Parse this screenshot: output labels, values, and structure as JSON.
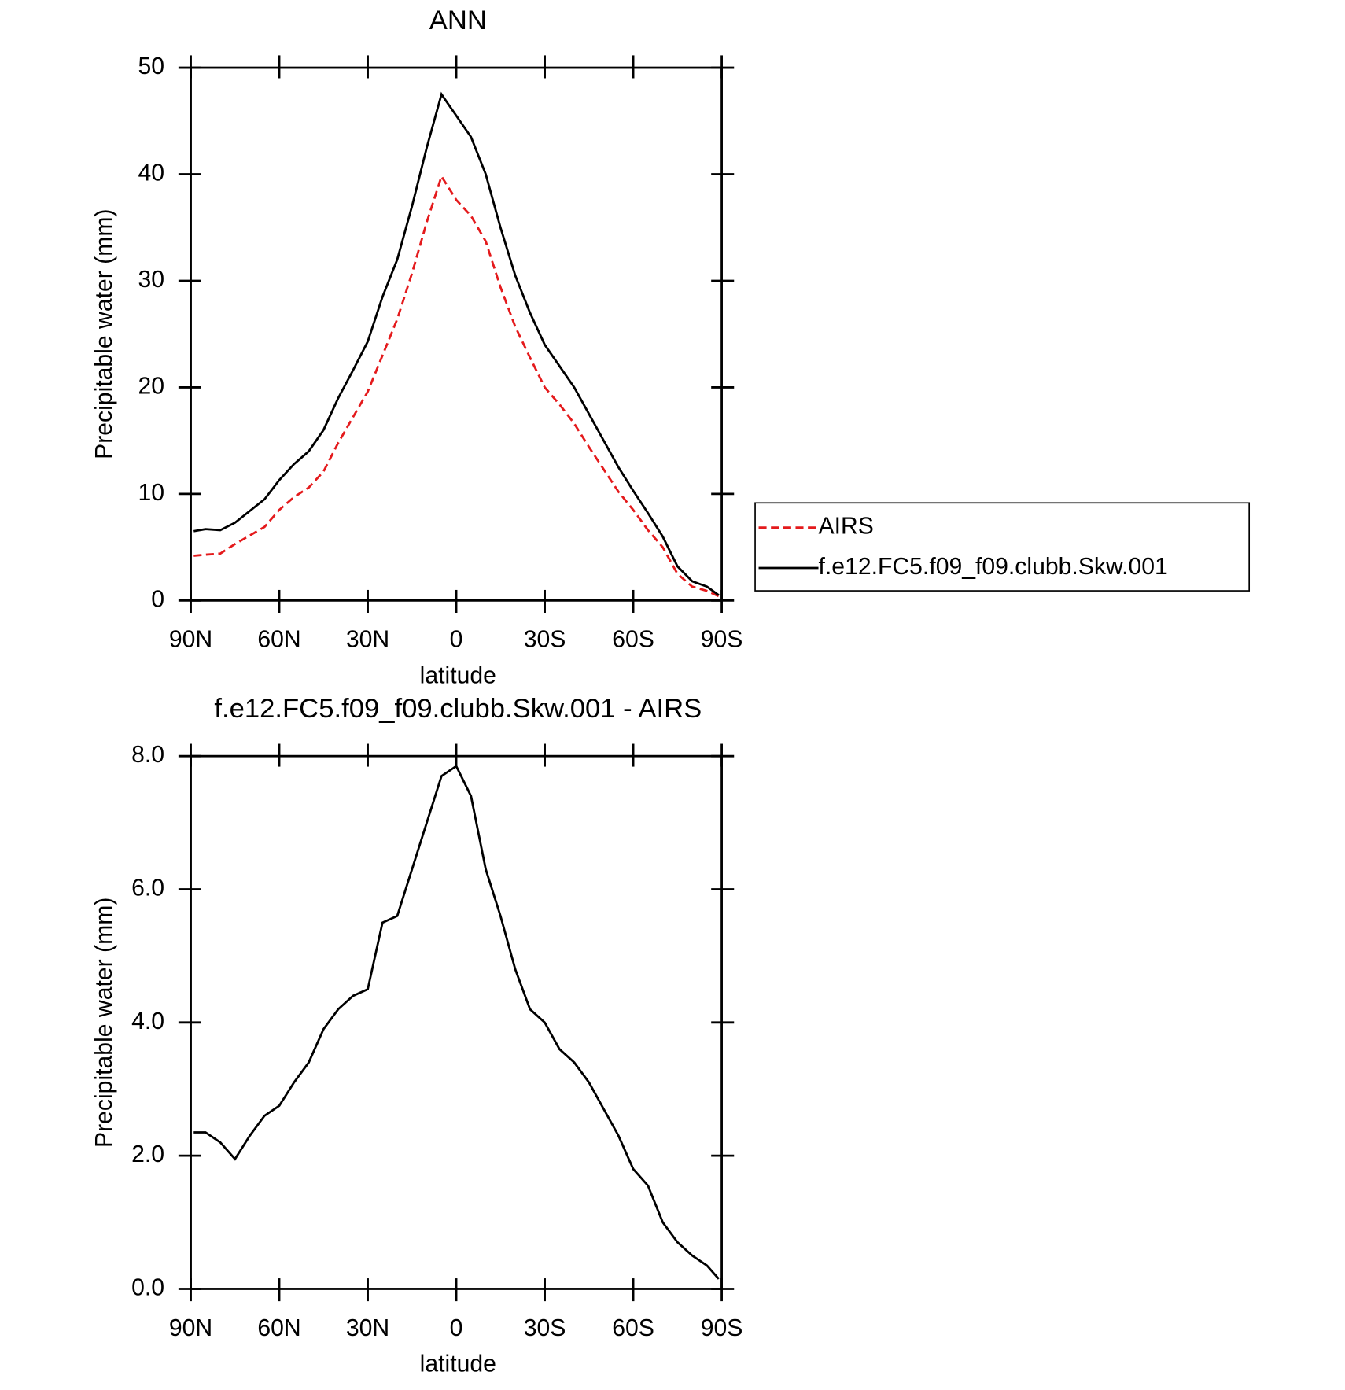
{
  "chart_data": [
    {
      "type": "line",
      "title": "ANN",
      "xlabel": "latitude",
      "ylabel": "Precipitable water (mm)",
      "x": [
        89,
        85,
        80,
        75,
        70,
        65,
        60,
        55,
        50,
        45,
        40,
        35,
        30,
        25,
        20,
        15,
        10,
        5,
        0,
        -5,
        -10,
        -15,
        -20,
        -25,
        -30,
        -35,
        -40,
        -45,
        -50,
        -55,
        -60,
        -65,
        -70,
        -75,
        -80,
        -85,
        -89
      ],
      "series": [
        {
          "name": "AIRS",
          "color": "#e41a1c",
          "dash": true,
          "values": [
            4.2,
            4.3,
            4.4,
            5.3,
            6.1,
            6.9,
            8.5,
            9.7,
            10.6,
            12.1,
            14.8,
            17.2,
            19.6,
            23.0,
            26.4,
            30.7,
            35.5,
            39.8,
            37.6,
            36.1,
            33.7,
            29.4,
            25.7,
            22.8,
            20.0,
            18.4,
            16.6,
            14.4,
            12.3,
            10.2,
            8.5,
            6.6,
            5.0,
            2.5,
            1.3,
            0.9,
            0.4
          ]
        },
        {
          "name": "f.e12.FC5.f09_f09.clubb.Skw.001",
          "color": "#000000",
          "dash": false,
          "values": [
            6.5,
            6.7,
            6.6,
            7.3,
            8.4,
            9.5,
            11.3,
            12.8,
            14.0,
            16.0,
            19.0,
            21.6,
            24.3,
            28.5,
            32.0,
            37.0,
            42.5,
            47.5,
            45.5,
            43.5,
            40.0,
            35.0,
            30.5,
            27.0,
            24.0,
            22.0,
            20.0,
            17.5,
            15.0,
            12.5,
            10.3,
            8.2,
            6.0,
            3.2,
            1.8,
            1.3,
            0.5
          ]
        }
      ],
      "xlim": [
        90,
        -90
      ],
      "xticks": [
        {
          "value": 90,
          "label": "90N"
        },
        {
          "value": 60,
          "label": "60N"
        },
        {
          "value": 30,
          "label": "30N"
        },
        0,
        {
          "value": -30,
          "label": "30S"
        },
        {
          "value": -60,
          "label": "60S"
        },
        {
          "value": -90,
          "label": "90S"
        }
      ],
      "ylim": [
        0,
        50
      ],
      "yticks": [
        0,
        10,
        20,
        30,
        40,
        50
      ],
      "legend": "right",
      "grid": false
    },
    {
      "type": "line",
      "title": "f.e12.FC5.f09_f09.clubb.Skw.001 - AIRS",
      "xlabel": "latitude",
      "ylabel": "Precipitable water (mm)",
      "x": [
        89,
        85,
        80,
        75,
        70,
        65,
        60,
        55,
        50,
        45,
        40,
        35,
        30,
        25,
        20,
        15,
        10,
        5,
        0,
        -5,
        -10,
        -15,
        -20,
        -25,
        -30,
        -35,
        -40,
        -45,
        -50,
        -55,
        -60,
        -65,
        -70,
        -75,
        -80,
        -85,
        -89
      ],
      "series": [
        {
          "color": "#000000",
          "dash": false,
          "values": [
            2.35,
            2.35,
            2.2,
            1.95,
            2.3,
            2.6,
            2.75,
            3.1,
            3.4,
            3.9,
            4.2,
            4.4,
            4.5,
            5.5,
            5.6,
            6.3,
            7.0,
            7.7,
            7.85,
            7.4,
            6.3,
            5.6,
            4.8,
            4.2,
            4.0,
            3.6,
            3.4,
            3.1,
            2.7,
            2.3,
            1.8,
            1.55,
            1.0,
            0.7,
            0.5,
            0.35,
            0.15
          ]
        }
      ],
      "xlim": [
        90,
        -90
      ],
      "xticks": [
        {
          "value": 90,
          "label": "90N"
        },
        {
          "value": 60,
          "label": "60N"
        },
        {
          "value": 30,
          "label": "30N"
        },
        0,
        {
          "value": -30,
          "label": "30S"
        },
        {
          "value": -60,
          "label": "60S"
        },
        {
          "value": -90,
          "label": "90S"
        }
      ],
      "ylim": [
        0,
        8
      ],
      "yticks": [
        {
          "value": 0,
          "label": "0.0"
        },
        {
          "value": 2,
          "label": "2.0"
        },
        {
          "value": 4,
          "label": "4.0"
        },
        {
          "value": 6,
          "label": "6.0"
        },
        {
          "value": 8,
          "label": "8.0"
        }
      ],
      "grid": false
    }
  ]
}
